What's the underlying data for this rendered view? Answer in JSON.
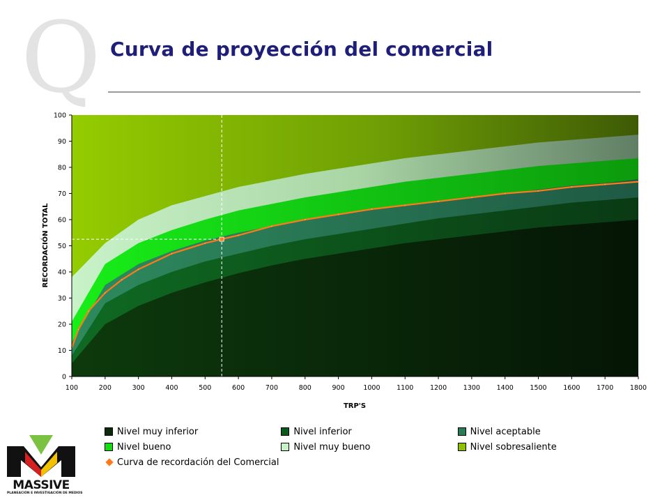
{
  "slide": {
    "title": "Curva de proyección del comercial",
    "deco_letter": "Q"
  },
  "colors": {
    "title": "#1f1f7a",
    "band_muy_inferior": "#0a2a0a",
    "band_inferior": "#0b5a1c",
    "band_aceptable": "#2a7a56",
    "band_bueno": "#10e010",
    "band_muy_bueno": "#c6f0c6",
    "band_sobresaliente": "#8cc000",
    "curve": "#ff7a1a",
    "logo_red": "#d42020",
    "logo_yellow": "#f2c200",
    "logo_green": "#7cc242"
  },
  "logo": {
    "icon": "massive-logo-icon",
    "name": "MASSIVE",
    "tagline": "PLANEACIÓN E INVESTIGACIÓN DE MEDIOS"
  },
  "chart_data": {
    "type": "area",
    "xlabel": "TRP'S",
    "ylabel": "RECORDACIÓN TOTAL",
    "xlim": [
      100,
      1800
    ],
    "ylim": [
      0,
      100
    ],
    "xticks": [
      100,
      200,
      300,
      400,
      500,
      600,
      700,
      800,
      900,
      1000,
      1100,
      1200,
      1300,
      1400,
      1500,
      1600,
      1700,
      1800
    ],
    "yticks": [
      0,
      10,
      20,
      30,
      40,
      50,
      60,
      70,
      80,
      90,
      100
    ],
    "grid": false,
    "legend_position": "bottom",
    "x": [
      100,
      200,
      300,
      400,
      500,
      600,
      700,
      800,
      900,
      1000,
      1100,
      1200,
      1300,
      1400,
      1500,
      1600,
      1700,
      1800
    ],
    "band_boundaries": [
      {
        "name": "Nivel muy inferior (upper)",
        "values": [
          5,
          20,
          27,
          32,
          36,
          39.5,
          42.5,
          45,
          47,
          49,
          51,
          52.5,
          54,
          55.5,
          57,
          58,
          59,
          60
        ]
      },
      {
        "name": "Nivel inferior (upper)",
        "values": [
          8,
          28,
          35,
          40,
          44,
          47,
          50,
          52.5,
          54.5,
          56.5,
          58.5,
          60.5,
          62,
          63.5,
          65,
          66.5,
          67.5,
          68.5
        ]
      },
      {
        "name": "Nivel aceptable (upper)",
        "values": [
          13,
          35,
          43,
          48,
          52,
          55,
          57.5,
          60,
          62,
          64,
          65.5,
          67,
          68.5,
          70,
          71.5,
          73,
          74,
          75.5
        ]
      },
      {
        "name": "Nivel bueno (upper)",
        "values": [
          21,
          43,
          51,
          56,
          60,
          63.5,
          66,
          68.5,
          70.5,
          72.5,
          74.5,
          76,
          77.5,
          79,
          80.5,
          81.5,
          82.5,
          83.5
        ]
      },
      {
        "name": "Nivel muy bueno (upper)",
        "values": [
          38,
          51,
          60,
          65.5,
          69,
          72.5,
          75,
          77.5,
          79.5,
          81.5,
          83.5,
          85,
          86.5,
          88,
          89.5,
          90.5,
          91.5,
          92.5
        ]
      },
      {
        "name": "Nivel sobresaliente (upper)",
        "values": [
          100,
          100,
          100,
          100,
          100,
          100,
          100,
          100,
          100,
          100,
          100,
          100,
          100,
          100,
          100,
          100,
          100,
          100
        ]
      }
    ],
    "series": [
      {
        "name": "Curva de recordación del Comercial",
        "x": [
          100,
          120,
          150,
          200,
          250,
          300,
          400,
          500,
          550,
          600,
          700,
          800,
          900,
          1000,
          1100,
          1200,
          1300,
          1400,
          1500,
          1600,
          1700,
          1800
        ],
        "values": [
          11,
          18,
          25,
          32,
          37,
          41,
          47,
          51,
          52.5,
          54,
          57.5,
          60,
          62,
          64,
          65.5,
          67,
          68.5,
          70,
          71,
          72.5,
          73.5,
          74.5
        ]
      }
    ],
    "highlight_point": {
      "x": 550,
      "y": 52.5
    },
    "legend": [
      "Nivel muy inferior",
      "Nivel inferior",
      "Nivel aceptable",
      "Nivel bueno",
      "Nivel muy bueno",
      "Nivel sobresaliente",
      "Curva de recordación del Comercial"
    ]
  }
}
